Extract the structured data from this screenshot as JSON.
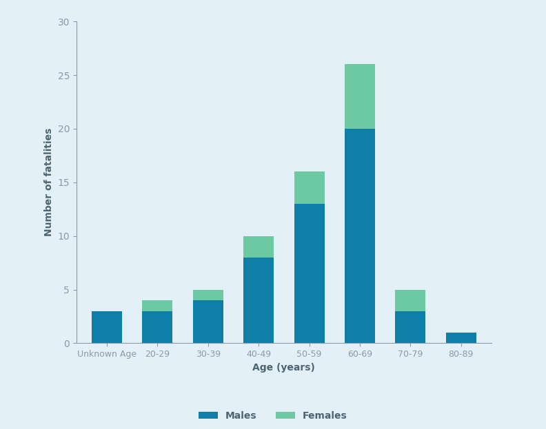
{
  "chart_data": {
    "type": "bar",
    "stacked": true,
    "x_label": "Age (years)",
    "y_label": "Number of fatalities",
    "categories": [
      "Unknown Age",
      "20-29",
      "30-39",
      "40-49",
      "50-59",
      "60-69",
      "70-79",
      "80-89"
    ],
    "series": [
      {
        "name": "Males",
        "color": "#0f7ea9",
        "values": [
          3,
          3,
          4,
          8,
          13,
          20,
          3,
          1
        ]
      },
      {
        "name": "Females",
        "color": "#6dc9a2",
        "values": [
          0,
          1,
          1,
          2,
          3,
          6,
          2,
          0
        ]
      }
    ],
    "ylim": [
      0,
      30
    ],
    "yticks": [
      0,
      5,
      10,
      15,
      20,
      25,
      30
    ],
    "grid": false,
    "legend": "lower center"
  }
}
